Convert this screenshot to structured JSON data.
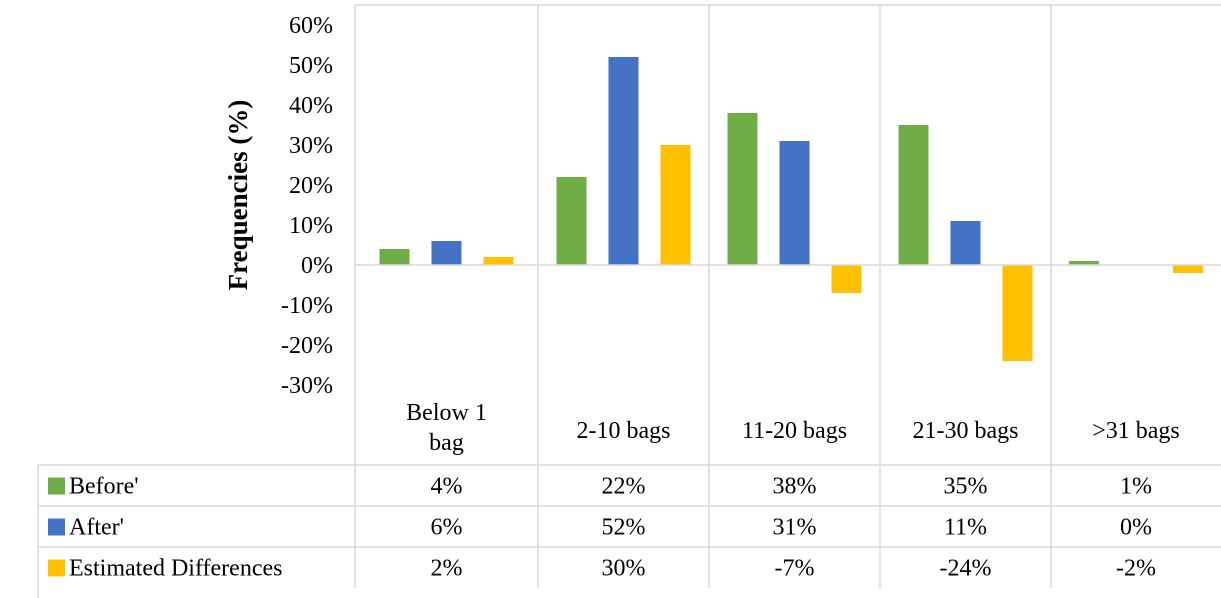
{
  "chart_data": {
    "type": "bar",
    "ylabel": "Frequencies (%)",
    "xlabel": "",
    "ylim": [
      -30,
      60
    ],
    "yticks": [
      60,
      50,
      40,
      30,
      20,
      10,
      0,
      -10,
      -20,
      -30
    ],
    "ytick_labels": [
      "60%",
      "50%",
      "40%",
      "30%",
      "20%",
      "10%",
      "0%",
      "-10%",
      "-20%",
      "-30%"
    ],
    "categories": [
      [
        "Below 1",
        "bag"
      ],
      [
        "2-10 bags"
      ],
      [
        "11-20 bags"
      ],
      [
        "21-30 bags"
      ],
      [
        ">31 bags"
      ]
    ],
    "series": [
      {
        "name": "Before'",
        "color": "#70ad47",
        "values": [
          4,
          22,
          38,
          35,
          1
        ],
        "labels": [
          "4%",
          "22%",
          "38%",
          "35%",
          "1%"
        ]
      },
      {
        "name": "After'",
        "color": "#4472c4",
        "values": [
          6,
          52,
          31,
          11,
          0
        ],
        "labels": [
          "6%",
          "52%",
          "31%",
          "11%",
          "0%"
        ]
      },
      {
        "name": "Estimated Differences",
        "color": "#ffc000",
        "values": [
          2,
          30,
          -7,
          -24,
          -2
        ],
        "labels": [
          "2%",
          "30%",
          "-7%",
          "-24%",
          "-2%"
        ]
      }
    ],
    "grid": "vertical",
    "legend": "data-table-bottom"
  }
}
